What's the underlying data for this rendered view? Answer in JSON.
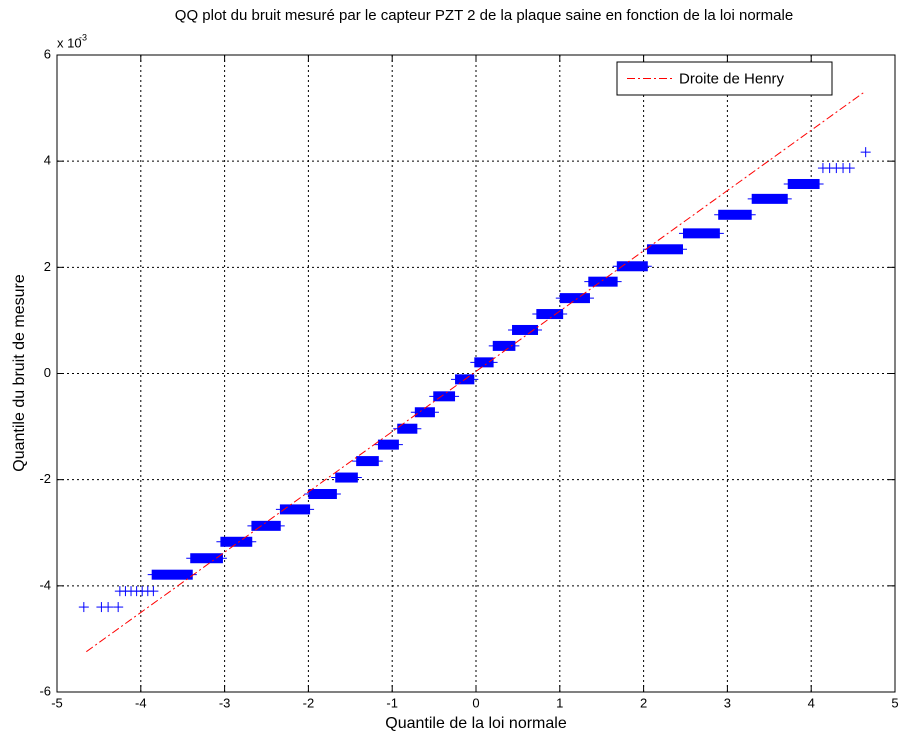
{
  "chart_data": {
    "type": "qq",
    "title": "QQ plot du bruit mesuré par le capteur PZT 2 de la plaque saine en fonction de la loi normale",
    "xlabel": "Quantile de la loi normale",
    "ylabel": "Quantile du bruit de mesure",
    "y_multiplier": {
      "base": "x 10",
      "exponent": "-3"
    },
    "xlim": [
      -5,
      5
    ],
    "ylim": [
      -6,
      6
    ],
    "xticks": [
      -5,
      -4,
      -3,
      -2,
      -1,
      0,
      1,
      2,
      3,
      4,
      5
    ],
    "yticks": [
      -6,
      -4,
      -2,
      0,
      2,
      4,
      6
    ],
    "grid": true,
    "legend": "top-right",
    "data_color": "#0000ff",
    "steps": [
      {
        "y": -4.1,
        "x0": -4.25,
        "x1": -3.85,
        "marker": "+"
      },
      {
        "y": -3.79,
        "x0": -3.87,
        "x1": -3.38,
        "marker": "bar"
      },
      {
        "y": -3.48,
        "x0": -3.41,
        "x1": -3.02,
        "marker": "bar"
      },
      {
        "y": -3.17,
        "x0": -3.05,
        "x1": -2.67,
        "marker": "bar"
      },
      {
        "y": -2.87,
        "x0": -2.68,
        "x1": -2.33,
        "marker": "bar"
      },
      {
        "y": -2.56,
        "x0": -2.34,
        "x1": -1.98,
        "marker": "bar"
      },
      {
        "y": -2.27,
        "x0": -2.0,
        "x1": -1.66,
        "marker": "bar"
      },
      {
        "y": -1.96,
        "x0": -1.68,
        "x1": -1.41,
        "marker": "bar"
      },
      {
        "y": -1.65,
        "x0": -1.43,
        "x1": -1.16,
        "marker": "bar"
      },
      {
        "y": -1.34,
        "x0": -1.17,
        "x1": -0.92,
        "marker": "bar"
      },
      {
        "y": -1.04,
        "x0": -0.94,
        "x1": -0.7,
        "marker": "bar"
      },
      {
        "y": -0.73,
        "x0": -0.73,
        "x1": -0.49,
        "marker": "bar"
      },
      {
        "y": -0.43,
        "x0": -0.51,
        "x1": -0.25,
        "marker": "bar"
      },
      {
        "y": -0.11,
        "x0": -0.25,
        "x1": -0.02,
        "marker": "bar"
      },
      {
        "y": 0.21,
        "x0": -0.02,
        "x1": 0.21,
        "marker": "bar"
      },
      {
        "y": 0.52,
        "x0": 0.2,
        "x1": 0.47,
        "marker": "bar"
      },
      {
        "y": 0.82,
        "x0": 0.43,
        "x1": 0.74,
        "marker": "bar"
      },
      {
        "y": 1.12,
        "x0": 0.72,
        "x1": 1.04,
        "marker": "bar"
      },
      {
        "y": 1.42,
        "x0": 1.0,
        "x1": 1.36,
        "marker": "bar"
      },
      {
        "y": 1.73,
        "x0": 1.34,
        "x1": 1.69,
        "marker": "bar"
      },
      {
        "y": 2.02,
        "x0": 1.68,
        "x1": 2.05,
        "marker": "bar"
      },
      {
        "y": 2.34,
        "x0": 2.04,
        "x1": 2.47,
        "marker": "bar"
      },
      {
        "y": 2.64,
        "x0": 2.47,
        "x1": 2.91,
        "marker": "bar"
      },
      {
        "y": 2.99,
        "x0": 2.89,
        "x1": 3.29,
        "marker": "bar"
      },
      {
        "y": 3.29,
        "x0": 3.29,
        "x1": 3.72,
        "marker": "bar"
      },
      {
        "y": 3.57,
        "x0": 3.72,
        "x1": 4.1,
        "marker": "bar"
      },
      {
        "y": 3.87,
        "x0": 4.14,
        "x1": 4.46,
        "marker": "+"
      }
    ],
    "points": [
      {
        "x": -4.68,
        "y": -4.4
      },
      {
        "x": -4.47,
        "y": -4.4
      },
      {
        "x": -4.39,
        "y": -4.4
      },
      {
        "x": -4.27,
        "y": -4.4
      },
      {
        "x": 4.65,
        "y": 4.17
      }
    ],
    "reference_line": {
      "name": "Droite de Henry",
      "color": "#ff0000",
      "x": [
        -4.65,
        4.65
      ],
      "y": [
        -5.24,
        5.32
      ]
    }
  }
}
